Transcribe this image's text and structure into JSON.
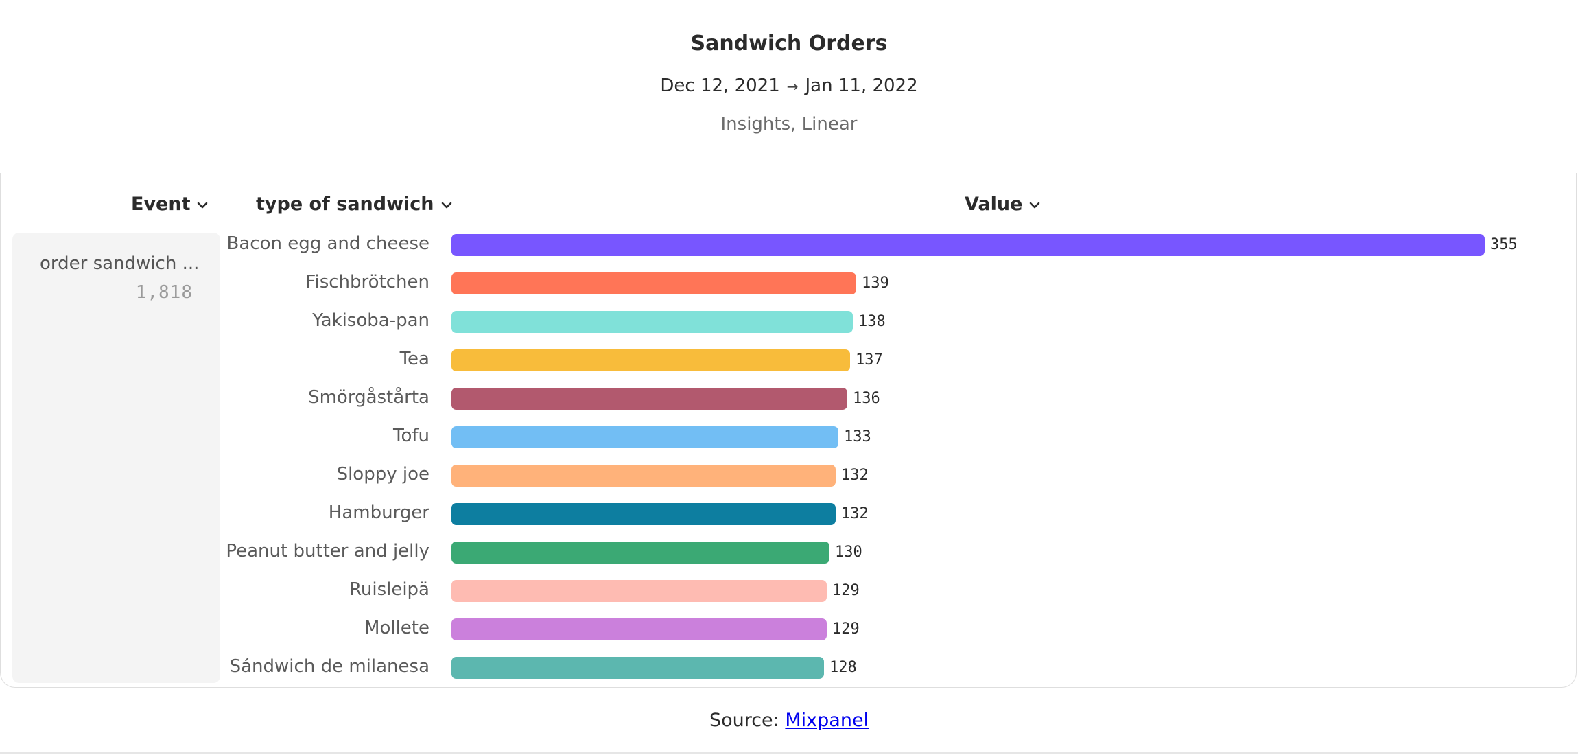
{
  "header": {
    "title": "Sandwich Orders",
    "date_start": "Dec 12, 2021",
    "date_arrow": "→",
    "date_end": "Jan 11, 2022",
    "subtitle": "Insights, Linear"
  },
  "columns": {
    "event": "Event",
    "breakdown": "type of sandwich",
    "value": "Value"
  },
  "event": {
    "name": "order sandwich ...",
    "count": "1,818"
  },
  "footer": {
    "source_label": "Source:",
    "source_link": "Mixpanel"
  },
  "chart_data": {
    "type": "bar",
    "orientation": "horizontal",
    "categories": [
      "Bacon egg and cheese",
      "Fischbrötchen",
      "Yakisoba-pan",
      "Tea",
      "Smörgåstårta",
      "Tofu",
      "Sloppy joe",
      "Hamburger",
      "Peanut butter and jelly",
      "Ruisleipä",
      "Mollete",
      "Sándwich de milanesa"
    ],
    "values": [
      355,
      139,
      138,
      137,
      136,
      133,
      132,
      132,
      130,
      129,
      129,
      128
    ],
    "colors": [
      "#7856ff",
      "#ff7557",
      "#80e1d9",
      "#f8bc3b",
      "#b2596e",
      "#72bef4",
      "#ffb27a",
      "#0d7ea0",
      "#3ba974",
      "#febbb2",
      "#cb80dc",
      "#5cb7af"
    ],
    "title": "Sandwich Orders",
    "xlim": [
      0,
      355
    ]
  }
}
